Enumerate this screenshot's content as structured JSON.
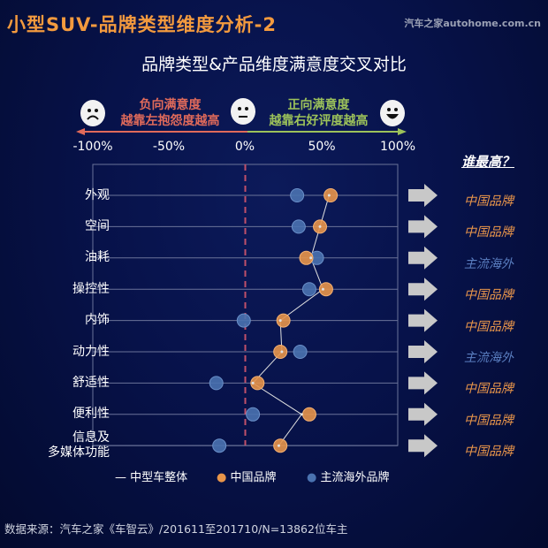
{
  "title": "小型SUV-品牌类型维度分析-2",
  "brand": "汽车之家autohome.com.cn",
  "subtitle": "品牌类型&产品维度满意度交叉对比",
  "scale": {
    "negative_line1": "负向满意度",
    "negative_line2": "越靠左抱怨度越高",
    "positive_line1": "正向满意度",
    "positive_line2": "越靠右好评度越高"
  },
  "who_highest": "谁最高？",
  "winners": [
    "中国品牌",
    "中国品牌",
    "主流海外",
    "中国品牌",
    "中国品牌",
    "主流海外",
    "中国品牌",
    "中国品牌",
    "中国品牌"
  ],
  "colors": {
    "china": "#e8954a",
    "foreign": "#4a72b0",
    "midsize": "#e0e0e0",
    "zero_line": "#c0506a",
    "negative": "#e06a5a",
    "positive": "#9cc25a"
  },
  "source": "数据来源：汽车之家《车智云》/201611至201710/N=13862位车主",
  "chart_data": {
    "type": "scatter",
    "xlim": [
      -100,
      100
    ],
    "x_ticks": [
      "-100%",
      "-50%",
      "0%",
      "50%",
      "100%"
    ],
    "categories": [
      "外观",
      "空间",
      "油耗",
      "操控性",
      "内饰",
      "动力性",
      "舒适性",
      "便利性",
      "信息及多媒体功能"
    ],
    "category_lines": [
      [
        "外观"
      ],
      [
        "空间"
      ],
      [
        "油耗"
      ],
      [
        "操控性"
      ],
      [
        "内饰"
      ],
      [
        "动力性"
      ],
      [
        "舒适性"
      ],
      [
        "便利性"
      ],
      [
        "信息及",
        "多媒体功能"
      ]
    ],
    "series": [
      {
        "name": "中型车整体",
        "type": "line",
        "values": [
          55,
          49,
          43,
          51,
          23,
          24,
          5,
          37,
          22
        ]
      },
      {
        "name": "中国品牌",
        "type": "scatter",
        "values": [
          56,
          49,
          40,
          53,
          25,
          23,
          8,
          42,
          23
        ]
      },
      {
        "name": "主流海外品牌",
        "type": "scatter",
        "values": [
          34,
          35,
          47,
          42,
          -1,
          36,
          -19,
          5,
          -17
        ]
      }
    ],
    "legend": "bottom"
  }
}
